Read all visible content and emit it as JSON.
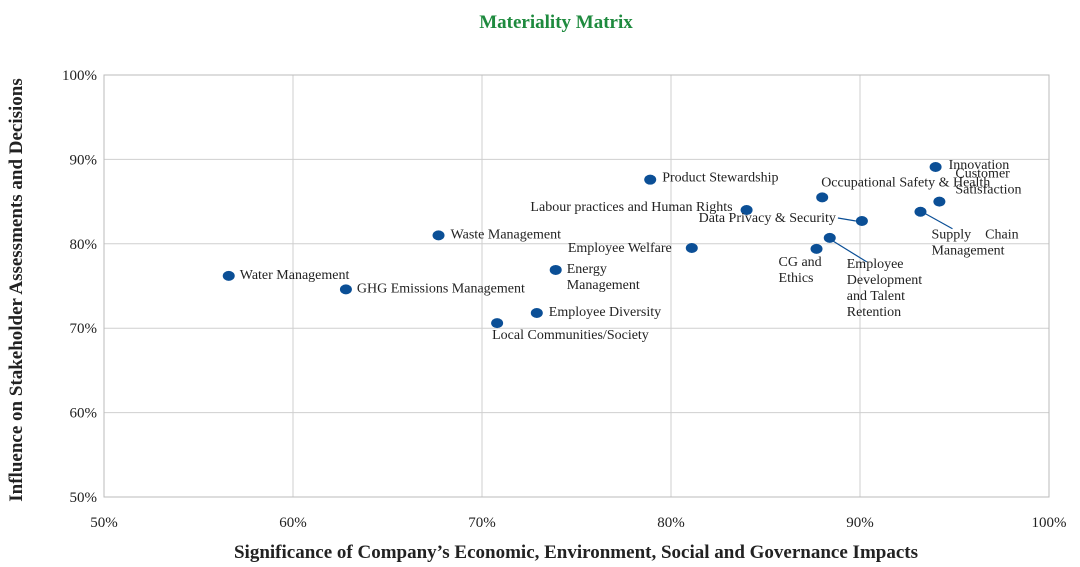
{
  "chart_data": {
    "type": "scatter",
    "title": "Materiality Matrix",
    "xlabel": "Significance of Company’s Economic, Environment, Social and Governance Impacts",
    "ylabel": "Influence on Stakeholder Assessments and Decisions",
    "color": "#0b4f96",
    "labels": [
      [
        "Water Management"
      ],
      [
        "GHG Emissions Management"
      ],
      [
        "Waste Management"
      ],
      [
        "Local Communities/Society"
      ],
      [
        "Employee Diversity"
      ],
      [
        "Energy",
        "Management"
      ],
      [
        "Product Stewardship"
      ],
      [
        "Employee Welfare"
      ],
      [
        "Labour practices and Human Rights"
      ],
      [
        "Occupational Safety & Health"
      ],
      [
        "Data Privacy & Security"
      ],
      [
        "CG and",
        "Ethics"
      ],
      [
        "Employee",
        "Development",
        "and Talent",
        "Retention"
      ],
      [
        "Innovation"
      ],
      [
        "Customer",
        "Satisfaction"
      ],
      [
        "Supply    Chain",
        "Management"
      ]
    ],
    "x": [
      56.6,
      62.8,
      67.7,
      70.8,
      72.9,
      73.9,
      78.9,
      81.1,
      84.0,
      88.0,
      90.1,
      87.7,
      88.4,
      94.0,
      94.2,
      93.2
    ],
    "values": [
      76.2,
      74.6,
      81.0,
      70.6,
      71.8,
      76.9,
      87.6,
      79.5,
      84.0,
      85.5,
      82.7,
      79.4,
      80.7,
      89.1,
      85.0,
      83.8
    ],
    "xlim": [
      50,
      100
    ],
    "ylim": [
      50,
      100
    ],
    "xticks": [
      {
        "value": 50,
        "label": "50%"
      },
      {
        "value": 60,
        "label": "60%"
      },
      {
        "value": 70,
        "label": "70%"
      },
      {
        "value": 80,
        "label": "80%"
      },
      {
        "value": 90,
        "label": "90%"
      },
      {
        "value": 100,
        "label": "100%"
      }
    ],
    "yticks": [
      {
        "value": 50,
        "label": "50%"
      },
      {
        "value": 60,
        "label": "60%"
      },
      {
        "value": 70,
        "label": "70%"
      },
      {
        "value": 80,
        "label": "80%"
      },
      {
        "value": 90,
        "label": "90%"
      },
      {
        "value": 100,
        "label": "100%"
      }
    ],
    "grid": true
  }
}
